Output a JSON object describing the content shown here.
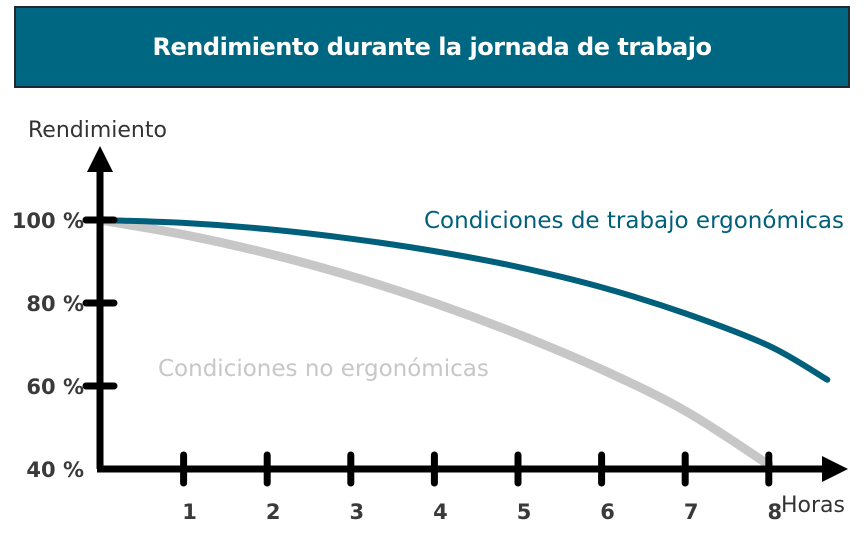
{
  "colors": {
    "header_bg": "#006783",
    "ergonomic": "#005f7a",
    "non_ergonomic": "#c7c7c7",
    "axis": "#000000"
  },
  "chart_data": {
    "type": "line",
    "title": "Rendimiento durante la jornada de trabajo",
    "xlabel": "Horas",
    "ylabel": "Rendimiento",
    "x_ticks": [
      1,
      2,
      3,
      4,
      5,
      6,
      7,
      8
    ],
    "y_ticks": [
      "40 %",
      "60 %",
      "80 %",
      "100 %"
    ],
    "y_tick_values": [
      40,
      60,
      80,
      100
    ],
    "xlim": [
      0,
      8.8
    ],
    "ylim": [
      40,
      100
    ],
    "series": [
      {
        "name": "Condiciones de trabajo ergonómicas",
        "color": "#005f7a",
        "x": [
          0,
          1,
          2,
          3,
          4,
          5,
          6,
          7,
          8,
          8.7
        ],
        "y": [
          100,
          99.3,
          97.8,
          95.5,
          92.5,
          88.7,
          83.8,
          77.5,
          69.7,
          61.5
        ]
      },
      {
        "name": "Condiciones no ergonómicas",
        "color": "#c7c7c7",
        "x": [
          0,
          1,
          2,
          3,
          4,
          5,
          6,
          7,
          8
        ],
        "y": [
          100,
          96.5,
          92,
          86.5,
          80,
          72.5,
          64,
          54,
          41
        ]
      }
    ]
  }
}
